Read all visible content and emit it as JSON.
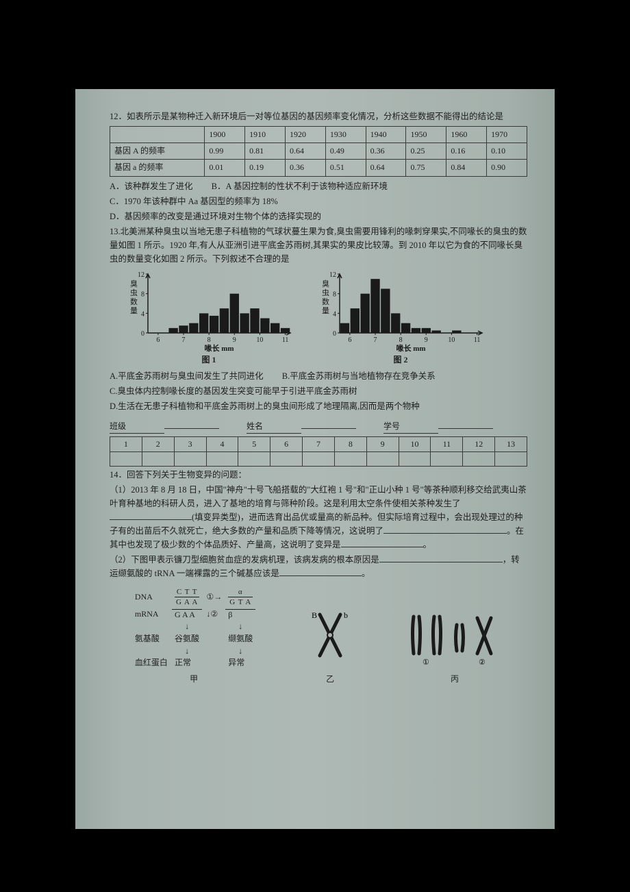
{
  "q12": {
    "stem": "12．如表所示是某物种迁入新环境后一对等位基因的基因频率变化情况，分析这些数据不能得出的结论是",
    "table": {
      "header": [
        "",
        "1900",
        "1910",
        "1920",
        "1930",
        "1940",
        "1950",
        "1960",
        "1970"
      ],
      "rows": [
        [
          "基因 A 的频率",
          "0.99",
          "0.81",
          "0.64",
          "0.49",
          "0.36",
          "0.25",
          "0.16",
          "0.10"
        ],
        [
          "基因 a 的频率",
          "0.01",
          "0.19",
          "0.36",
          "0.51",
          "0.64",
          "0.75",
          "0.84",
          "0.90"
        ]
      ]
    },
    "optA": "A．该种群发生了进化",
    "optB": "B．A 基因控制的性状不利于该物种适应新环境",
    "optC": "C．1970 年该种群中 Aa 基因型的频率为 18%",
    "optD": "D．基因频率的改变是通过环境对生物个体的选择实现的"
  },
  "q13": {
    "stem": "13.北美洲某种臭虫以当地无患子科植物的气球状蔓生果为食,臭虫需要用锋利的喙刺穿果实,不同喙长的臭虫的数量如图 1 所示。1920 年,有人从亚洲引进平底金苏雨树,其果实的果皮比较薄。到 2010 年以它为食的不同喙长臭虫的数量变化如图 2 所示。下列叙述不合理的是",
    "chart1": {
      "type": "bar",
      "y_label": "臭虫数量",
      "x_label": "喙长 mm",
      "title": "图 1",
      "x_ticks": [
        6,
        7,
        8,
        9,
        10,
        11
      ],
      "y_ticks": [
        0,
        4,
        8,
        12
      ],
      "ylim": [
        0,
        12
      ],
      "bins": [
        5.8,
        6.2,
        6.6,
        7.0,
        7.4,
        7.8,
        8.2,
        8.6,
        9.0,
        9.4,
        9.8,
        10.2,
        10.6,
        11.0
      ],
      "values": [
        0,
        0,
        1,
        1.5,
        2,
        4,
        3.5,
        5,
        8,
        4,
        5,
        3,
        2,
        1
      ],
      "bar_color": "#1a1a1a",
      "background": "#a8b4b0",
      "axis_color": "#1a1a1a"
    },
    "chart2": {
      "type": "bar",
      "y_label": "臭虫数量",
      "x_label": "喙长 mm",
      "title": "图 2",
      "x_ticks": [
        6,
        7,
        8,
        9,
        10,
        11
      ],
      "y_ticks": [
        0,
        4,
        8,
        12
      ],
      "ylim": [
        0,
        12
      ],
      "bins": [
        5.8,
        6.2,
        6.6,
        7.0,
        7.4,
        7.8,
        8.2,
        8.6,
        9.0,
        9.4,
        9.8,
        10.2,
        10.6,
        11.0
      ],
      "values": [
        2,
        5,
        8,
        11,
        9,
        4,
        2,
        1,
        1,
        0.5,
        0,
        0.5,
        0,
        0
      ],
      "bar_color": "#1a1a1a",
      "background": "#a8b4b0",
      "axis_color": "#1a1a1a"
    },
    "optA": "A.平底金苏雨树与臭虫间发生了共同进化",
    "optB": "B.平底金苏雨树与当地植物存在竞争关系",
    "optC": "C.臭虫体内控制喙长度的基因发生突变可能早于引进平底金苏雨树",
    "optD": "D.生活在无患子科植物和平底金苏雨树上的臭虫间形成了地理隔离,因而是两个物种"
  },
  "answer_sheet": {
    "class_label": "班级",
    "name_label": "姓名",
    "id_label": "学号",
    "nums": [
      "1",
      "2",
      "3",
      "4",
      "5",
      "6",
      "7",
      "8",
      "9",
      "10",
      "11",
      "12",
      "13"
    ]
  },
  "q14": {
    "stem": "14．回答下列关于生物变异的问题：",
    "p1a": "（1）2013 年 8 月 18 日，中国\"神舟\"十号飞船搭载的\"大红袍 1 号\"和\"正山小种 1 号\"等茶种顺利移交给武夷山茶叶育种基地的科研人员，进入了基地的培育与筛种阶段。这是利用太空条件使相关茶种发生了",
    "p1b": "(填变异类型)，进而选育出品优或量高的新品种。但实际培育过程中，会出现处理过的种子有的出苗后不久就死亡，绝大多数的产量和品质下降等情况，这说明了",
    "p1c": "。在其中也发现了极少数的个体品质好、产量高，这说明了变异是",
    "p1d": "。",
    "p2a": "（2）下图甲表示镰刀型细胞贫血症的发病机理，该病发病的根本原因是",
    "p2b": "，转运缬氨酸的 tRNA 一端裸露的三个碱基应该是",
    "p2c": "。"
  },
  "diagram": {
    "caption_jia": "甲",
    "caption_yi": "乙",
    "caption_bing": "丙",
    "dna_label": "DNA",
    "mrna_label": "mRNA",
    "aa_label": "氨基酸",
    "hb_label": "血红蛋白",
    "seq_top1": "C T T",
    "seq_bot1": "G A A",
    "seq_top2": "α",
    "seq_bot2": "G T A",
    "mrna_seq1": "G A A",
    "mrna_seq2": "β",
    "aa1": "谷氨酸",
    "aa2": "缬氨酸",
    "hb1": "正常",
    "hb2": "异常",
    "circ1": "①",
    "circ2": "②",
    "yi_B": "B",
    "yi_b": "b",
    "bing_1": "①",
    "bing_2": "②"
  }
}
